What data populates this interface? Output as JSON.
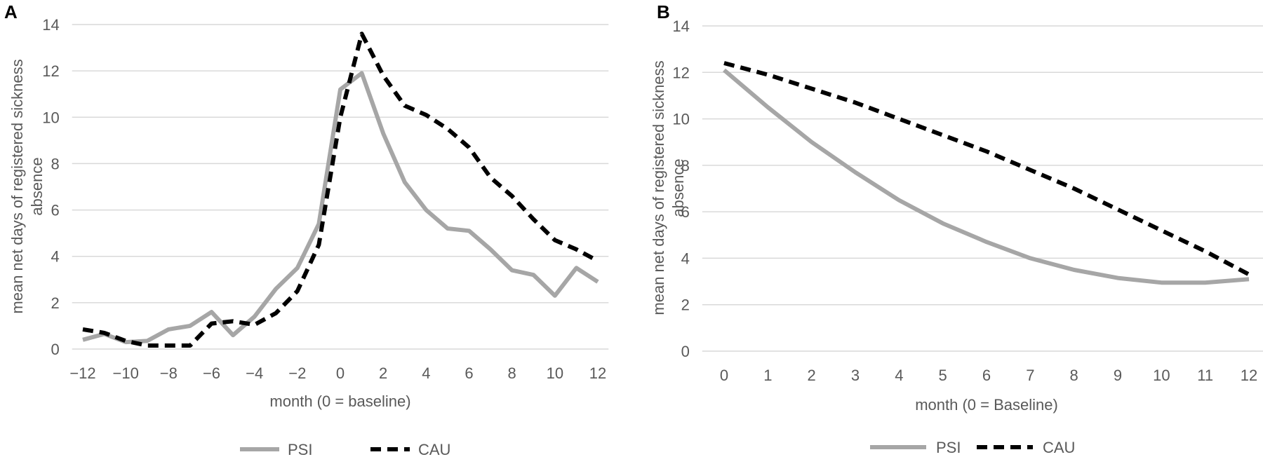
{
  "chart_data": [
    {
      "panel_label": "A",
      "type": "line",
      "xlabel": "month (0 = baseline)",
      "ylabel": "mean net days of registered sickness absence",
      "ylabel_lines": [
        "mean net days of registered sickness",
        "absence"
      ],
      "ylim": [
        0,
        14
      ],
      "yticks": [
        0,
        2,
        4,
        6,
        8,
        10,
        12,
        14
      ],
      "xlim": [
        -12,
        12
      ],
      "xticks": [
        -12,
        -10,
        -8,
        -6,
        -4,
        -2,
        0,
        2,
        4,
        6,
        8,
        10,
        12
      ],
      "grid": true,
      "legend_position": "bottom",
      "x": [
        -12,
        -11,
        -10,
        -9,
        -8,
        -7,
        -6,
        -5,
        -4,
        -3,
        -2,
        -1,
        0,
        1,
        2,
        3,
        4,
        5,
        6,
        7,
        8,
        9,
        10,
        11,
        12
      ],
      "series": [
        {
          "name": "PSI",
          "color": "#a6a6a6",
          "style": "solid",
          "values": [
            0.4,
            0.65,
            0.3,
            0.35,
            0.85,
            1.0,
            1.6,
            0.6,
            1.4,
            2.6,
            3.5,
            5.4,
            11.2,
            11.9,
            9.3,
            7.2,
            6.0,
            5.2,
            5.1,
            4.3,
            3.4,
            3.2,
            2.3,
            3.5,
            2.9
          ]
        },
        {
          "name": "CAU",
          "color": "#000000",
          "style": "dashed",
          "values": [
            0.85,
            0.7,
            0.35,
            0.15,
            0.15,
            0.15,
            1.1,
            1.2,
            1.05,
            1.55,
            2.5,
            4.5,
            10.0,
            13.6,
            11.8,
            10.5,
            10.1,
            9.5,
            8.7,
            7.4,
            6.6,
            5.6,
            4.7,
            4.3,
            3.8
          ]
        }
      ]
    },
    {
      "panel_label": "B",
      "type": "line",
      "xlabel": "month (0 = Baseline)",
      "ylabel": "mean net days of registered sickness absence",
      "ylabel_lines": [
        "mean net days of registered sickness",
        "absence"
      ],
      "ylim": [
        0,
        14
      ],
      "yticks": [
        0,
        2,
        4,
        6,
        8,
        10,
        12,
        14
      ],
      "xlim": [
        0,
        12
      ],
      "xticks": [
        0,
        1,
        2,
        3,
        4,
        5,
        6,
        7,
        8,
        9,
        10,
        11,
        12
      ],
      "grid": true,
      "legend_position": "bottom",
      "x": [
        0,
        1,
        2,
        3,
        4,
        5,
        6,
        7,
        8,
        9,
        10,
        11,
        12
      ],
      "series": [
        {
          "name": "PSI",
          "color": "#a6a6a6",
          "style": "solid",
          "values": [
            12.1,
            10.5,
            9.0,
            7.7,
            6.5,
            5.5,
            4.7,
            4.0,
            3.5,
            3.15,
            2.95,
            2.95,
            3.1
          ]
        },
        {
          "name": "CAU",
          "color": "#000000",
          "style": "dashed",
          "values": [
            12.4,
            11.9,
            11.3,
            10.7,
            10.0,
            9.3,
            8.6,
            7.8,
            7.0,
            6.1,
            5.2,
            4.3,
            3.3
          ]
        }
      ]
    }
  ]
}
